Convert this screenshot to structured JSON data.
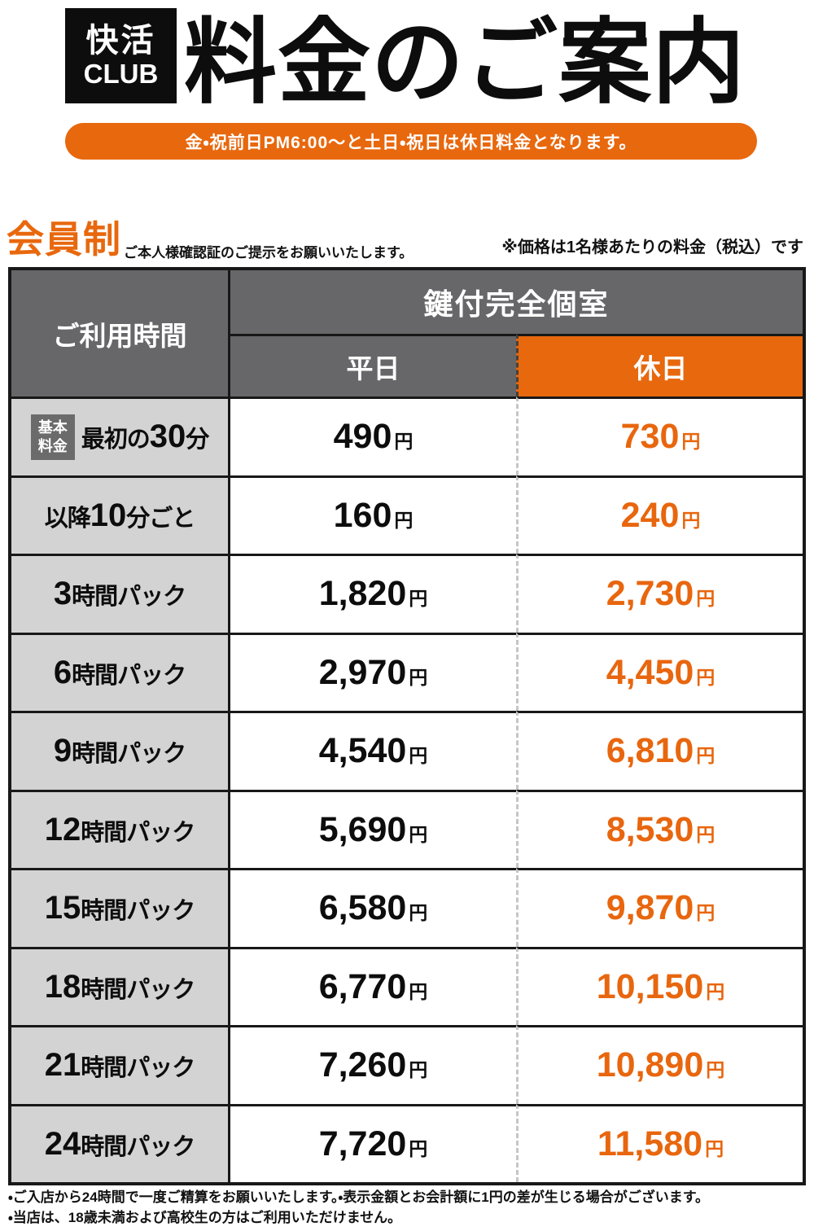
{
  "header": {
    "logo_line1": "快活",
    "logo_line2": "CLUB",
    "title": "料金のご案内",
    "banner": "金・祝前日PM6:00〜と土日・祝日は休日料金となります。"
  },
  "section": {
    "membership": "会員制",
    "membership_note": "ご本人様確認証のご提示をお願いいたします。",
    "price_note": "※価格は1名様あたりの料金（税込）です"
  },
  "table": {
    "col_time": "ご利用時間",
    "col_room": "鍵付完全個室",
    "col_weekday": "平日",
    "col_holiday": "休日",
    "yen_suffix": "円",
    "rows": [
      {
        "badge": [
          "基本",
          "料金"
        ],
        "label": [
          {
            "t": "最初の",
            "big": false
          },
          {
            "t": "30",
            "big": true
          },
          {
            "t": "分",
            "big": false
          }
        ],
        "weekday": "490",
        "holiday": "730"
      },
      {
        "label": [
          {
            "t": "以降",
            "big": false
          },
          {
            "t": "10",
            "big": true
          },
          {
            "t": "分ごと",
            "big": false
          }
        ],
        "weekday": "160",
        "holiday": "240"
      },
      {
        "label": [
          {
            "t": "3",
            "big": true
          },
          {
            "t": "時間パック",
            "big": false
          }
        ],
        "weekday": "1,820",
        "holiday": "2,730"
      },
      {
        "label": [
          {
            "t": "6",
            "big": true
          },
          {
            "t": "時間パック",
            "big": false
          }
        ],
        "weekday": "2,970",
        "holiday": "4,450"
      },
      {
        "label": [
          {
            "t": "9",
            "big": true
          },
          {
            "t": "時間パック",
            "big": false
          }
        ],
        "weekday": "4,540",
        "holiday": "6,810"
      },
      {
        "label": [
          {
            "t": "12",
            "big": true
          },
          {
            "t": "時間パック",
            "big": false
          }
        ],
        "weekday": "5,690",
        "holiday": "8,530"
      },
      {
        "label": [
          {
            "t": "15",
            "big": true
          },
          {
            "t": "時間パック",
            "big": false
          }
        ],
        "weekday": "6,580",
        "holiday": "9,870"
      },
      {
        "label": [
          {
            "t": "18",
            "big": true
          },
          {
            "t": "時間パック",
            "big": false
          }
        ],
        "weekday": "6,770",
        "holiday": "10,150"
      },
      {
        "label": [
          {
            "t": "21",
            "big": true
          },
          {
            "t": "時間パック",
            "big": false
          }
        ],
        "weekday": "7,260",
        "holiday": "10,890"
      },
      {
        "label": [
          {
            "t": "24",
            "big": true
          },
          {
            "t": "時間パック",
            "big": false
          }
        ],
        "weekday": "7,720",
        "holiday": "11,580"
      }
    ]
  },
  "footer": {
    "note1": "・ご入店から24時間で一度ご精算をお願いいたします。・表示金額とお会計額に1円の差が生じる場合がございます。",
    "note2": "・当店は、18歳未満および高校生の方はご利用いただけません。"
  },
  "colors": {
    "accent_orange": "#e8680e",
    "price_orange": "#e8660e",
    "header_gray": "#67676a",
    "label_gray": "#d3d3d3",
    "badge_gray": "#6b6b6b",
    "text_black": "#0d0d0d"
  }
}
